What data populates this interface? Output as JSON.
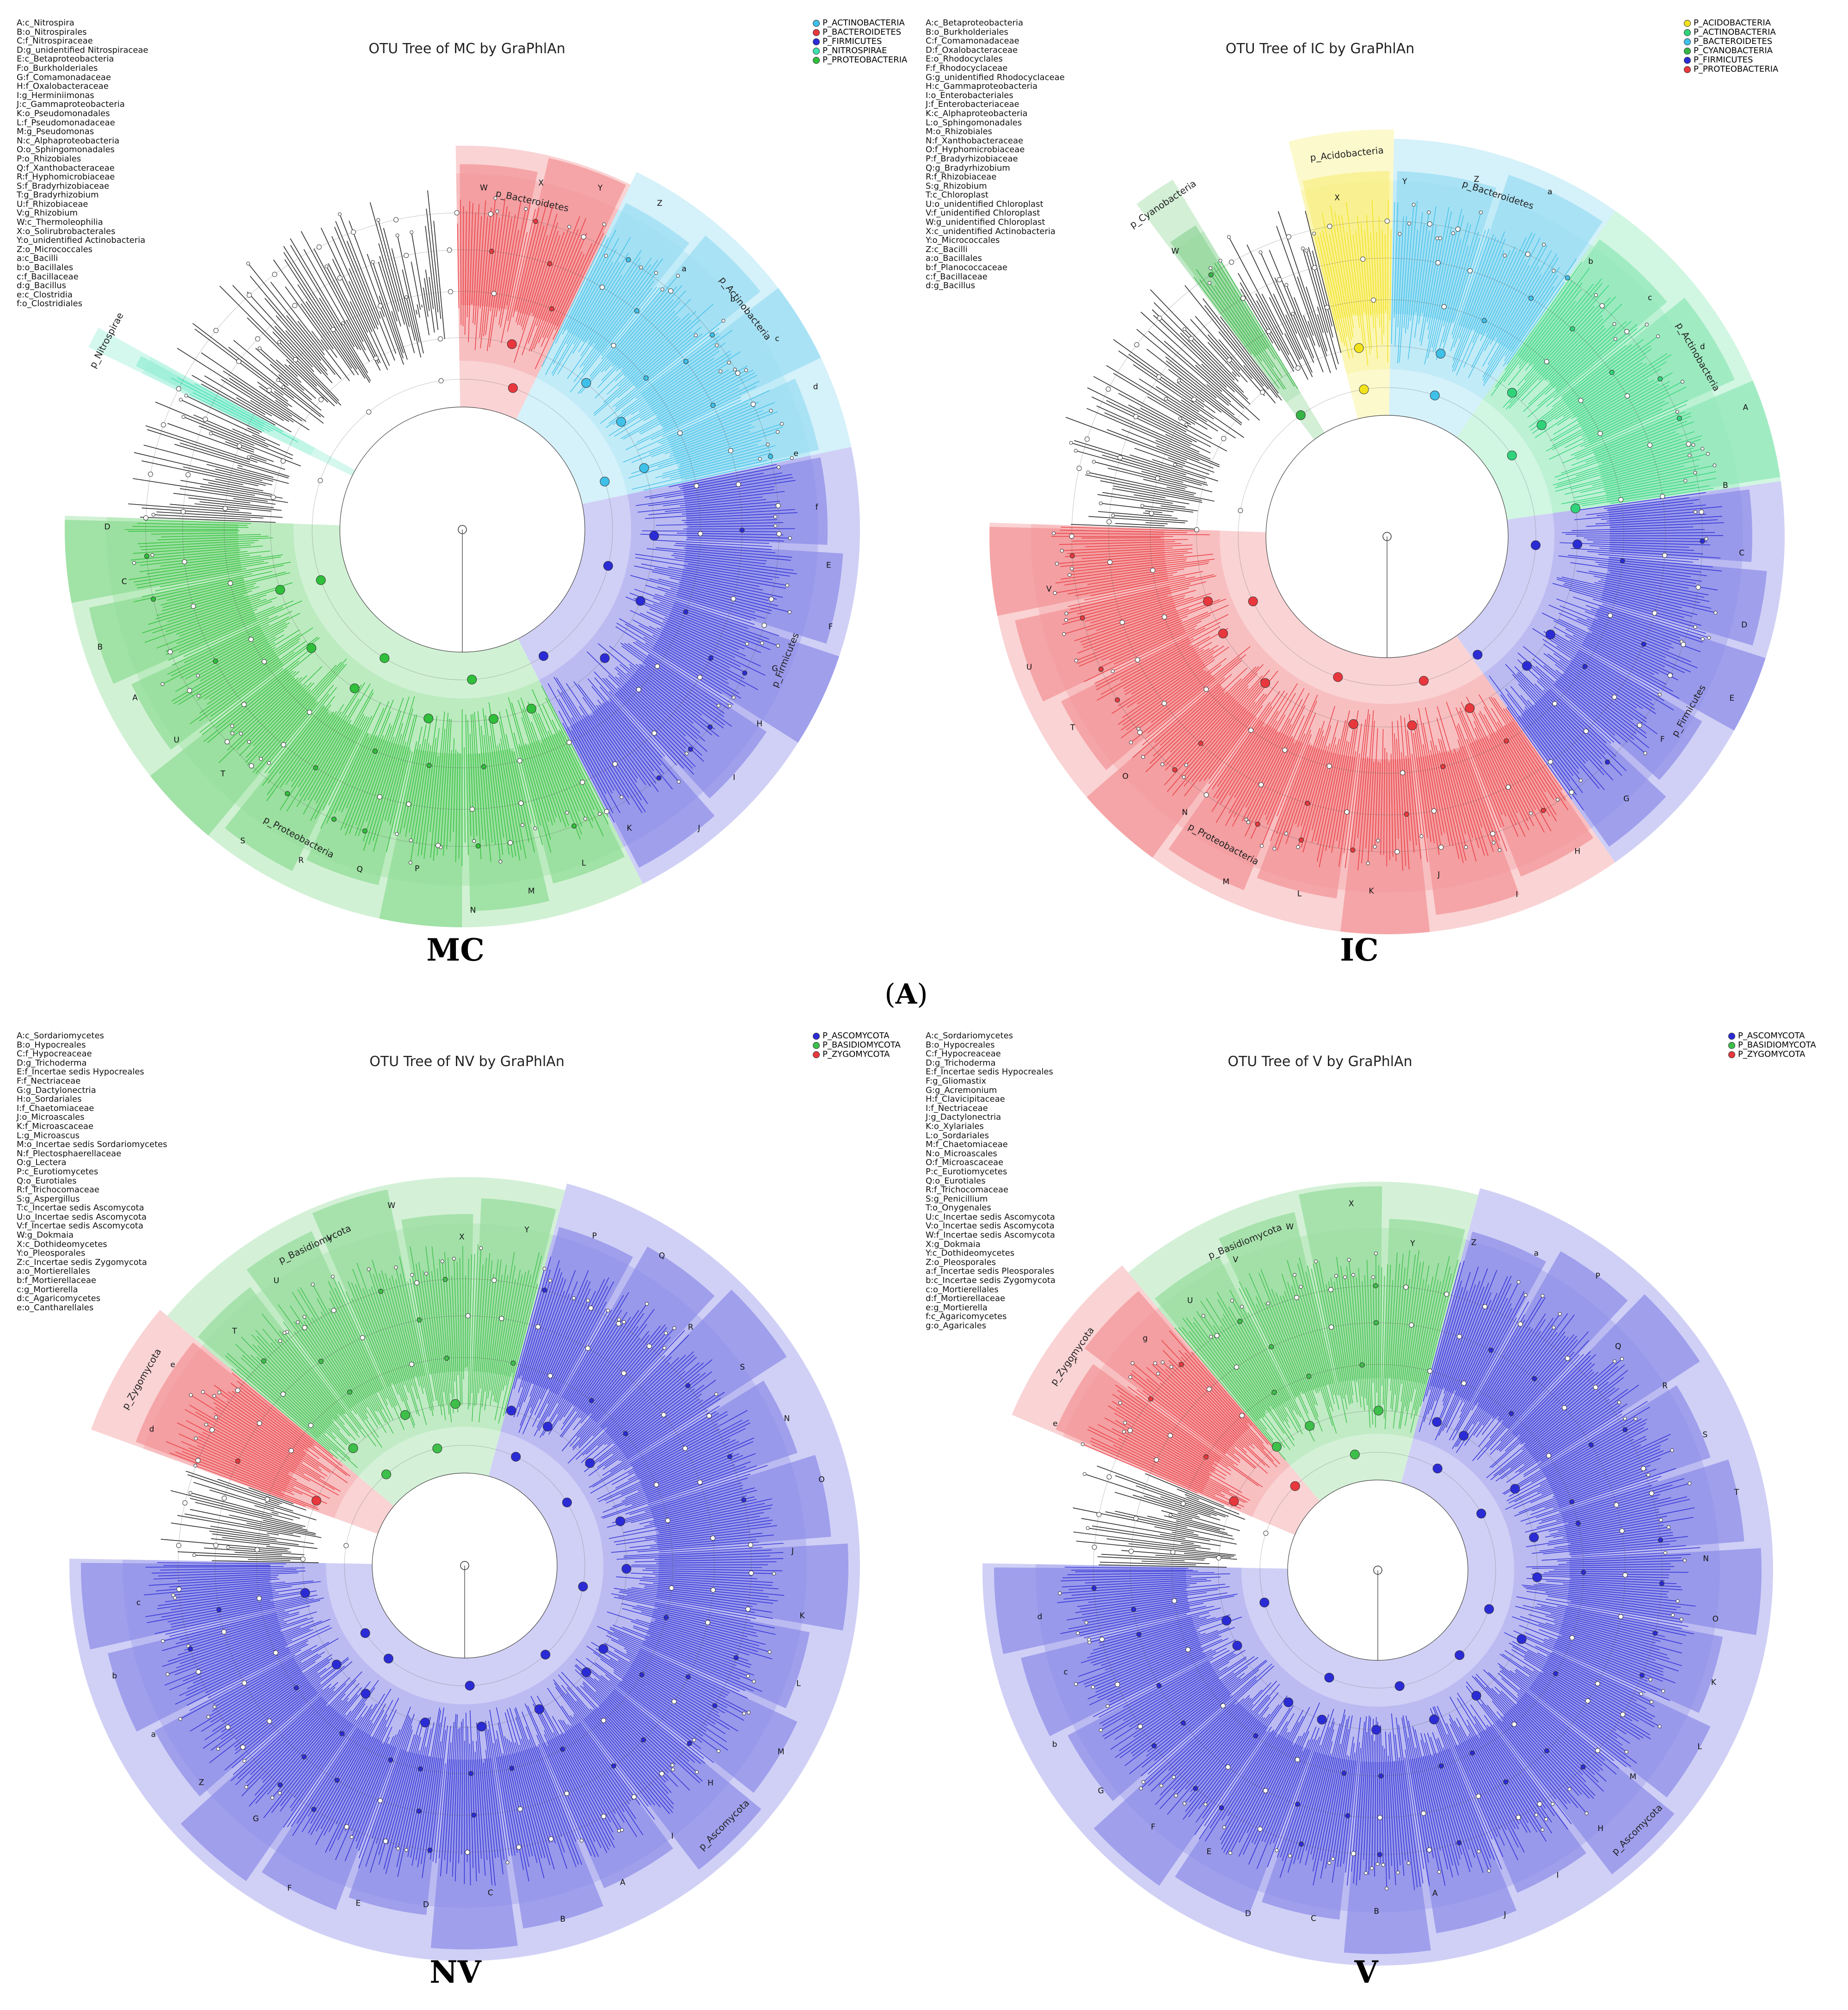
{
  "figure_label": "A",
  "panels": [
    {
      "id": "MC",
      "title": "OTU Tree of MC by GraPhlAn",
      "caption": "MC",
      "legend": [
        {
          "label": "P_ACTINOBACTERIA",
          "color": "#3fc0e8"
        },
        {
          "label": "P_BACTEROIDETES",
          "color": "#e8383d"
        },
        {
          "label": "P_FIRMICUTES",
          "color": "#2b2bd6"
        },
        {
          "label": "P_NITROSPIRAE",
          "color": "#3de0b0"
        },
        {
          "label": "P_PROTEOBACTERIA",
          "color": "#2fbf3a"
        }
      ],
      "abbreviations": [
        "A:c_Nitrospira",
        "B:o_Nitrospirales",
        "C:f_Nitrospiraceae",
        "D:g_unidentified Nitrospiraceae",
        "E:c_Betaproteobacteria",
        "F:o_Burkholderiales",
        "G:f_Comamonadaceae",
        "H:f_Oxalobacteraceae",
        "I:g_Herminiimonas",
        "J:c_Gammaproteobacteria",
        "K:o_Pseudomonadales",
        "L:f_Pseudomonadaceae",
        "M:g_Pseudomonas",
        "N:c_Alphaproteobacteria",
        "O:o_Sphingomonadales",
        "P:o_Rhizobiales",
        "Q:f_Xanthobacteraceae",
        "R:f_Hyphomicrobiaceae",
        "S:f_Bradyrhizobiaceae",
        "T:g_Bradyrhizobium",
        "U:f_Rhizobiaceae",
        "V:g_Rhizobium",
        "W:c_Thermoleophilia",
        "X:o_Solirubrobacterales",
        "Y:o_unidentified Actinobacteria",
        "Z:o_Micrococcales",
        "a:c_Bacilli",
        "b:o_Bacillales",
        "c:f_Bacillaceae",
        "d:g_Bacillus",
        "e:c_Clostridia",
        "f:o_Clostridiales"
      ],
      "clades": [
        {
          "name": "p_Bacteroidetes",
          "color": "#e8383d"
        },
        {
          "name": "p_Actinobacteria",
          "color": "#3fc0e8"
        },
        {
          "name": "p_Firmicutes",
          "color": "#2b2bd6"
        },
        {
          "name": "p_Proteobacteria",
          "color": "#2fbf3a"
        },
        {
          "name": "p_Nitrospirae",
          "color": "#3de0b0"
        }
      ],
      "sector_letters": [
        "W",
        "X",
        "Y",
        "Z",
        "a",
        "b",
        "c",
        "d",
        "e",
        "f",
        "E",
        "F",
        "G",
        "H",
        "I",
        "J",
        "K",
        "L",
        "M",
        "N",
        "P",
        "Q",
        "R",
        "S",
        "T",
        "U",
        "A",
        "B",
        "C",
        "D"
      ]
    },
    {
      "id": "IC",
      "title": "OTU Tree of IC by GraPhlAn",
      "caption": "IC",
      "legend": [
        {
          "label": "P_ACIDOBACTERIA",
          "color": "#f2e21b"
        },
        {
          "label": "P_ACTINOBACTERIA",
          "color": "#2fd47a"
        },
        {
          "label": "P_BACTEROIDETES",
          "color": "#3fc0e8"
        },
        {
          "label": "P_CYANOBACTERIA",
          "color": "#35b545"
        },
        {
          "label": "P_FIRMICUTES",
          "color": "#2b2bd6"
        },
        {
          "label": "P_PROTEOBACTERIA",
          "color": "#e8383d"
        }
      ],
      "abbreviations": [
        "A:c_Betaproteobacteria",
        "B:o_Burkholderiales",
        "C:f_Comamonadaceae",
        "D:f_Oxalobacteraceae",
        "E:o_Rhodocyclales",
        "F:f_Rhodocyclaceae",
        "G:g_unidentified Rhodocyclaceae",
        "H:c_Gammaproteobacteria",
        "I:o_Enterobacteriales",
        "J:f_Enterobacteriaceae",
        "K:c_Alphaproteobacteria",
        "L:o_Sphingomonadales",
        "M:o_Rhizobiales",
        "N:f_Xanthobacteraceae",
        "O:f_Hyphomicrobiaceae",
        "P:f_Bradyrhizobiaceae",
        "Q:g_Bradyrhizobium",
        "R:f_Rhizobiaceae",
        "S:g_Rhizobium",
        "T:c_Chloroplast",
        "U:o_unidentified Chloroplast",
        "V:f_unidentified Chloroplast",
        "W:g_unidentified Chloroplast",
        "X:c_unidentified Actinobacteria",
        "Y:o_Micrococcales",
        "Z:c_Bacilli",
        "a:o_Bacillales",
        "b:f_Planococcaceae",
        "c:f_Bacillaceae",
        "d:g_Bacillus"
      ],
      "clades": [
        {
          "name": "p_Acidobacteria",
          "color": "#f2e21b"
        },
        {
          "name": "p_Bacteroidetes",
          "color": "#3fc0e8"
        },
        {
          "name": "p_Actinobacteria",
          "color": "#2fd47a"
        },
        {
          "name": "p_Firmicutes",
          "color": "#2b2bd6"
        },
        {
          "name": "p_Proteobacteria",
          "color": "#e8383d"
        },
        {
          "name": "p_Cyanobacteria",
          "color": "#35b545"
        }
      ],
      "sector_letters": [
        "X",
        "Y",
        "Z",
        "a",
        "b",
        "c",
        "d",
        "A",
        "B",
        "C",
        "D",
        "E",
        "F",
        "G",
        "H",
        "I",
        "J",
        "K",
        "L",
        "M",
        "N",
        "O",
        "T",
        "U",
        "V",
        "W"
      ]
    },
    {
      "id": "NV",
      "title": "OTU Tree of NV by GraPhlAn",
      "caption": "NV",
      "legend": [
        {
          "label": "P_ASCOMYCOTA",
          "color": "#2b2bd6"
        },
        {
          "label": "P_BASIDIOMYCOTA",
          "color": "#3dbf4a"
        },
        {
          "label": "P_ZYGOMYCOTA",
          "color": "#e8383d"
        }
      ],
      "abbreviations": [
        "A:c_Sordariomycetes",
        "B:o_Hypocreales",
        "C:f_Hypocreaceae",
        "D:g_Trichoderma",
        "E:f_Incertae sedis Hypocreales",
        "F:f_Nectriaceae",
        "G:g_Dactylonectria",
        "H:o_Sordariales",
        "I:f_Chaetomiaceae",
        "J:o_Microascales",
        "K:f_Microascaceae",
        "L:g_Microascus",
        "M:o_Incertae sedis Sordariomycetes",
        "N:f_Plectosphaerellaceae",
        "O:g_Lectera",
        "P:c_Eurotiomycetes",
        "Q:o_Eurotiales",
        "R:f_Trichocomaceae",
        "S:g_Aspergillus",
        "T:c_Incertae sedis Ascomycota",
        "U:o_Incertae sedis Ascomycota",
        "V:f_Incertae sedis Ascomycota",
        "W:g_Dokmaia",
        "X:c_Dothideomycetes",
        "Y:o_Pleosporales",
        "Z:c_Incertae sedis Zygomycota",
        "a:o_Mortierellales",
        "b:f_Mortierellaceae",
        "c:g_Mortierella",
        "d:c_Agaricomycetes",
        "e:o_Cantharellales"
      ],
      "clades": [
        {
          "name": "p_Basidiomycota",
          "color": "#3dbf4a"
        },
        {
          "name": "p_Ascomycota",
          "color": "#2b2bd6"
        },
        {
          "name": "p_Zygomycota",
          "color": "#e8383d"
        }
      ],
      "sector_letters": [
        "T",
        "U",
        "V",
        "W",
        "X",
        "Y",
        "P",
        "Q",
        "R",
        "S",
        "N",
        "O",
        "J",
        "K",
        "L",
        "M",
        "H",
        "I",
        "A",
        "B",
        "C",
        "D",
        "E",
        "F",
        "G",
        "Z",
        "a",
        "b",
        "c",
        "d",
        "e"
      ]
    },
    {
      "id": "V",
      "title": "OTU Tree of V by GraPhlAn",
      "caption": "V",
      "legend": [
        {
          "label": "P_ASCOMYCOTA",
          "color": "#2b2bd6"
        },
        {
          "label": "P_BASIDIOMYCOTA",
          "color": "#3dbf4a"
        },
        {
          "label": "P_ZYGOMYCOTA",
          "color": "#e8383d"
        }
      ],
      "abbreviations": [
        "A:c_Sordariomycetes",
        "B:o_Hypocreales",
        "C:f_Hypocreaceae",
        "D:g_Trichoderma",
        "E:f_Incertae sedis Hypocreales",
        "F:g_Gliomastix",
        "G:g_Acremonium",
        "H:f_Clavicipitaceae",
        "I:f_Nectriaceae",
        "J:g_Dactylonectria",
        "K:o_Xylariales",
        "L:o_Sordariales",
        "M:f_Chaetomiaceae",
        "N:o_Microascales",
        "O:f_Microascaceae",
        "P:c_Eurotiomycetes",
        "Q:o_Eurotiales",
        "R:f_Trichocomaceae",
        "S:g_Penicillium",
        "T:o_Onygenales",
        "U:c_Incertae sedis Ascomycota",
        "V:o_Incertae sedis Ascomycota",
        "W:f_Incertae sedis Ascomycota",
        "X:g_Dokmaia",
        "Y:c_Dothideomycetes",
        "Z:o_Pleosporales",
        "a:f_Incertae sedis Pleosporales",
        "b:c_Incertae sedis Zygomycota",
        "c:o_Mortierellales",
        "d:f_Mortierellaceae",
        "e:g_Mortierella",
        "f:c_Agaricomycetes",
        "g:o_Agaricales"
      ],
      "clades": [
        {
          "name": "p_Basidiomycota",
          "color": "#3dbf4a"
        },
        {
          "name": "p_Ascomycota",
          "color": "#2b2bd6"
        },
        {
          "name": "p_Zygomycota",
          "color": "#e8383d"
        }
      ],
      "sector_letters": [
        "U",
        "V",
        "W",
        "X",
        "Y",
        "Z",
        "a",
        "P",
        "Q",
        "R",
        "S",
        "T",
        "N",
        "O",
        "K",
        "L",
        "M",
        "H",
        "I",
        "J",
        "A",
        "B",
        "C",
        "D",
        "E",
        "F",
        "G",
        "b",
        "c",
        "d",
        "e",
        "f",
        "g"
      ]
    }
  ]
}
